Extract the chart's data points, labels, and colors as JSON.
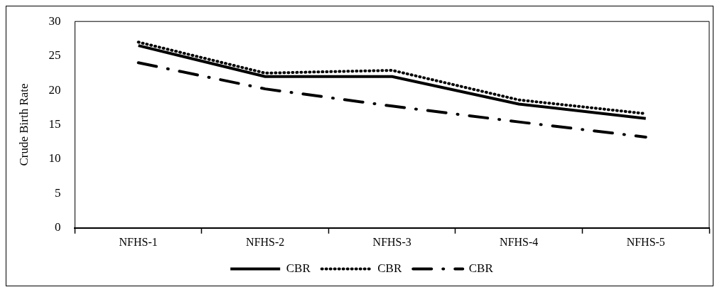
{
  "chart_data": {
    "type": "line",
    "ylabel": "Crude Birth Rate",
    "categories": [
      "NFHS-1",
      "NFHS-2",
      "NFHS-3",
      "NFHS-4",
      "NFHS-5"
    ],
    "series": [
      {
        "name": "CBR",
        "color": "#000000",
        "line_style": "solid",
        "values": [
          26.5,
          22,
          22,
          18,
          15.9
        ]
      },
      {
        "name": "CBR",
        "color": "#000000",
        "line_style": "dotted",
        "values": [
          27,
          22.5,
          22.9,
          18.6,
          16.6
        ]
      },
      {
        "name": "CBR",
        "color": "#000000",
        "line_style": "dashed",
        "values": [
          24,
          20.2,
          17.7,
          15.4,
          13.2
        ]
      }
    ],
    "ylim": [
      0,
      30
    ],
    "yticks": [
      0,
      5,
      10,
      15,
      20,
      25,
      30
    ],
    "grid": false,
    "legend": "bottom",
    "marker": "none"
  }
}
